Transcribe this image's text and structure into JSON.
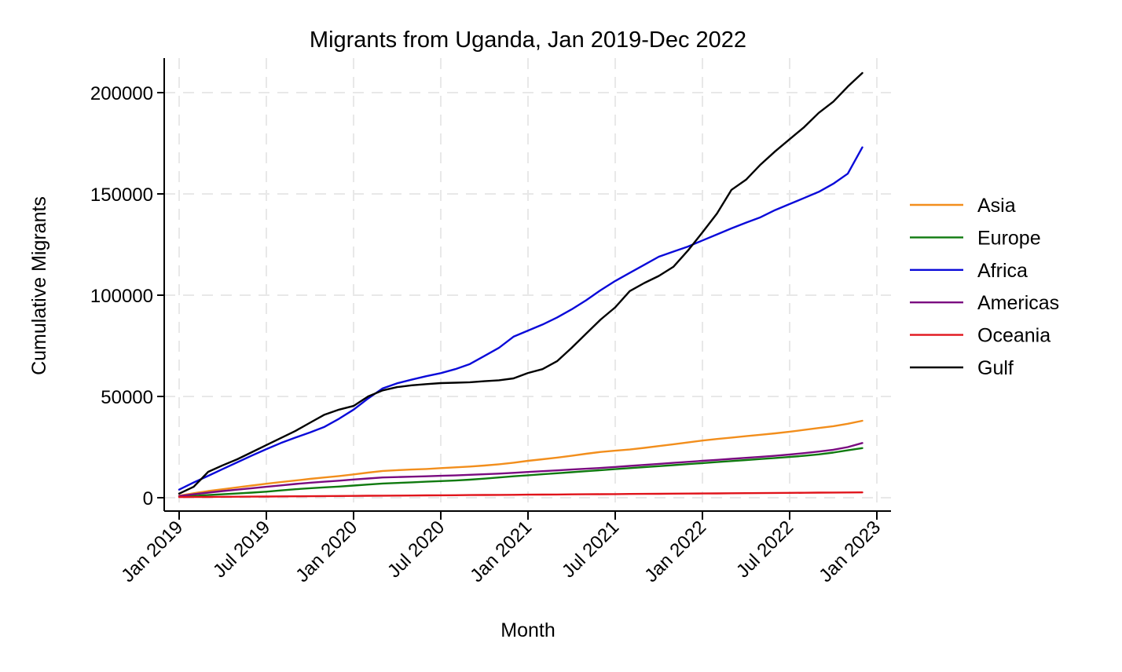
{
  "chart_data": {
    "type": "line",
    "title": "Migrants from Uganda, Jan 2019-Dec 2022",
    "xlabel": "Month",
    "ylabel": "Cumulative Migrants",
    "x_ticks": [
      "Jan 2019",
      "Jul 2019",
      "Jan 2020",
      "Jul 2020",
      "Jan 2021",
      "Jul 2021",
      "Jan 2022",
      "Jul 2022",
      "Jan 2023"
    ],
    "x_tick_months": [
      0,
      6,
      12,
      18,
      24,
      30,
      36,
      42,
      48
    ],
    "y_ticks": [
      0,
      50000,
      100000,
      150000,
      200000
    ],
    "y_tick_labels": [
      "0",
      "50000",
      "100000",
      "150000",
      "200000"
    ],
    "xlim_months": [
      0,
      48
    ],
    "ylim": [
      0,
      200000
    ],
    "grid": true,
    "legend_position": "right",
    "x_note": "x = months since Jan 2019 (0 = Jan 2019, 47 = Dec 2022)",
    "series": [
      {
        "name": "Asia",
        "color": "#f28e1c",
        "values": [
          1000,
          2200,
          3300,
          4200,
          5100,
          6000,
          6900,
          7700,
          8500,
          9300,
          10000,
          10700,
          11500,
          12400,
          13200,
          13600,
          13900,
          14200,
          14600,
          15000,
          15400,
          15900,
          16500,
          17300,
          18200,
          19000,
          19800,
          20700,
          21700,
          22600,
          23200,
          23800,
          24600,
          25500,
          26400,
          27300,
          28200,
          29000,
          29700,
          30400,
          31100,
          31800,
          32600,
          33500,
          34400,
          35300,
          36500,
          38000
        ]
      },
      {
        "name": "Europe",
        "color": "#0f7a0f",
        "values": [
          500,
          900,
          1300,
          1700,
          2100,
          2500,
          3000,
          3600,
          4200,
          4700,
          5100,
          5500,
          6000,
          6500,
          7000,
          7300,
          7600,
          7900,
          8200,
          8500,
          8900,
          9400,
          10000,
          10600,
          11100,
          11600,
          12100,
          12600,
          13100,
          13600,
          14100,
          14600,
          15100,
          15600,
          16100,
          16600,
          17100,
          17600,
          18100,
          18600,
          19100,
          19600,
          20100,
          20700,
          21400,
          22300,
          23400,
          24500
        ]
      },
      {
        "name": "Africa",
        "color": "#0a0ad9",
        "values": [
          4000,
          7500,
          10800,
          14200,
          17500,
          20800,
          24000,
          27000,
          29700,
          32200,
          35000,
          39000,
          43500,
          49000,
          54000,
          56500,
          58300,
          60000,
          61500,
          63500,
          66000,
          70000,
          74000,
          79500,
          82500,
          85500,
          89000,
          93000,
          97500,
          102500,
          107000,
          111000,
          115000,
          119000,
          121500,
          124000,
          127000,
          130000,
          133000,
          135800,
          138500,
          142000,
          145000,
          148000,
          151000,
          155000,
          160000,
          173000
        ]
      },
      {
        "name": "Americas",
        "color": "#7a0a80",
        "values": [
          800,
          1700,
          2500,
          3300,
          4000,
          4700,
          5400,
          6100,
          6800,
          7400,
          7900,
          8400,
          9000,
          9500,
          10000,
          10200,
          10400,
          10600,
          10800,
          11000,
          11300,
          11600,
          11900,
          12300,
          12700,
          13100,
          13500,
          13900,
          14300,
          14700,
          15200,
          15700,
          16200,
          16700,
          17200,
          17700,
          18200,
          18700,
          19200,
          19700,
          20200,
          20700,
          21300,
          22000,
          22800,
          23700,
          25000,
          27000
        ]
      },
      {
        "name": "Oceania",
        "color": "#e0141b",
        "values": [
          300,
          350,
          400,
          450,
          500,
          550,
          600,
          650,
          700,
          750,
          800,
          850,
          900,
          950,
          1000,
          1050,
          1100,
          1150,
          1200,
          1250,
          1300,
          1350,
          1400,
          1450,
          1500,
          1550,
          1600,
          1650,
          1700,
          1750,
          1800,
          1850,
          1900,
          1950,
          2000,
          2050,
          2100,
          2150,
          2200,
          2250,
          2300,
          2350,
          2400,
          2450,
          2500,
          2550,
          2600,
          2650
        ]
      },
      {
        "name": "Gulf",
        "color": "#000000",
        "values": [
          2000,
          5400,
          12800,
          16000,
          19000,
          22500,
          26000,
          29500,
          33000,
          37000,
          41000,
          43500,
          45300,
          50000,
          53000,
          54600,
          55500,
          56100,
          56600,
          56800,
          57000,
          57500,
          58000,
          58900,
          61600,
          63500,
          67400,
          74000,
          81000,
          88000,
          94000,
          102000,
          106000,
          109500,
          114000,
          122000,
          131000,
          140300,
          152000,
          157000,
          164500,
          171000,
          177000,
          183000,
          190000,
          195500,
          203000,
          209700
        ]
      }
    ]
  }
}
